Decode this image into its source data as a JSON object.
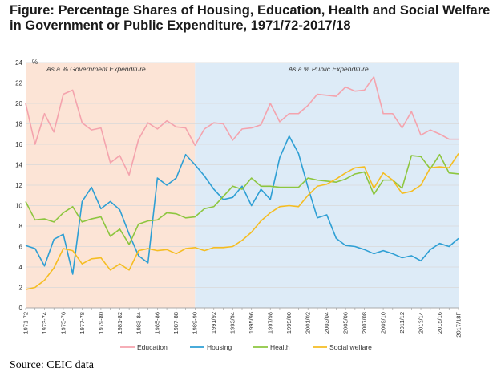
{
  "figure": {
    "title": "Figure: Percentage Shares of Housing, Education, Health and Social Welfare in Government or Public Expenditure, 1971/72-2017/18",
    "source": "Source: CEIC data"
  },
  "chart_data": {
    "type": "line",
    "ylabel": "%",
    "ylim": [
      0,
      24
    ],
    "yticks": [
      0,
      2,
      4,
      6,
      8,
      10,
      12,
      14,
      16,
      18,
      20,
      22,
      24
    ],
    "grid": true,
    "legend_position": "bottom",
    "regions": [
      {
        "label": "As a  %  Government Expenditure",
        "from": "1971-72",
        "to": "1989-90",
        "color": "#fce4d6"
      },
      {
        "label": "As a  %  Public Expenditure",
        "from": "1989-90",
        "to": "2017/18F",
        "color": "#ddebf7"
      }
    ],
    "x": [
      "1971-72",
      "1972-73",
      "1973-74",
      "1974-75",
      "1975-76",
      "1976-77",
      "1977-78",
      "1978-79",
      "1979-80",
      "1980-81",
      "1981-82",
      "1982-83",
      "1983-84",
      "1984-85",
      "1985-86",
      "1986-87",
      "1987-88",
      "1988-89",
      "1989-90",
      "1990/91",
      "1991/92",
      "1992/93",
      "1993/94",
      "1994/95",
      "1995/96",
      "1996/97",
      "1997/98",
      "1998/99",
      "1999/00",
      "2000/01",
      "2001/02",
      "2002/03",
      "2003/04",
      "2004/05",
      "2005/06",
      "2006/07",
      "2007/08",
      "2008/09",
      "2009/10",
      "2010/11",
      "2011/12",
      "2012/13",
      "2013/14",
      "2014/15",
      "2015/16",
      "2016/17",
      "2017/18F"
    ],
    "xtick_labels": [
      "1971-72",
      "1973-74",
      "1975-76",
      "1977-78",
      "1979-80",
      "1981-82",
      "1983-84",
      "1985-86",
      "1987-88",
      "1989-90",
      "1991/92",
      "1993/94",
      "1995/96",
      "1997/98",
      "1999/00",
      "2001/02",
      "2003/04",
      "2005/06",
      "2007/08",
      "2009/10",
      "2011/12",
      "2013/14",
      "2015/16",
      "2017/18F"
    ],
    "series": [
      {
        "name": "Education",
        "color": "#f4a3ad",
        "values": [
          20.0,
          16.0,
          19.0,
          17.2,
          20.9,
          21.3,
          18.1,
          17.4,
          17.6,
          14.2,
          14.9,
          13.0,
          16.5,
          18.1,
          17.5,
          18.3,
          17.7,
          17.6,
          15.9,
          17.5,
          18.1,
          18.0,
          16.4,
          17.5,
          17.6,
          17.9,
          20.0,
          18.2,
          19.0,
          19.0,
          19.8,
          20.9,
          20.8,
          20.7,
          21.6,
          21.2,
          21.3,
          22.6,
          19.0,
          19.0,
          17.6,
          19.2,
          16.9,
          17.4,
          17.0,
          16.5,
          16.5
        ]
      },
      {
        "name": "Housing",
        "color": "#2e9fd4",
        "values": [
          6.1,
          5.8,
          4.1,
          6.7,
          7.2,
          3.3,
          10.4,
          11.8,
          9.7,
          10.4,
          9.6,
          7.2,
          5.1,
          4.4,
          12.7,
          12.0,
          12.7,
          15.0,
          14.0,
          12.9,
          11.6,
          10.6,
          10.8,
          11.9,
          10.0,
          11.6,
          10.6,
          14.7,
          16.8,
          15.1,
          11.8,
          8.8,
          9.1,
          6.8,
          6.1,
          6.0,
          5.7,
          5.3,
          5.6,
          5.3,
          4.9,
          5.1,
          4.6,
          5.7,
          6.3,
          6.0,
          6.8
        ]
      },
      {
        "name": "Health",
        "color": "#8dc63f",
        "values": [
          10.4,
          8.6,
          8.7,
          8.4,
          9.3,
          9.9,
          8.4,
          8.7,
          8.9,
          7.0,
          7.7,
          6.2,
          8.2,
          8.5,
          8.6,
          9.3,
          9.2,
          8.8,
          8.9,
          9.7,
          9.9,
          10.9,
          11.9,
          11.6,
          12.7,
          11.9,
          11.9,
          11.8,
          11.8,
          11.8,
          12.7,
          12.5,
          12.4,
          12.3,
          12.6,
          13.1,
          13.3,
          11.1,
          12.5,
          12.5,
          11.7,
          14.9,
          14.8,
          13.6,
          15.0,
          13.2,
          13.1
        ]
      },
      {
        "name": "Social welfare",
        "color": "#f5bd22",
        "values": [
          1.8,
          2.0,
          2.7,
          3.9,
          5.8,
          5.6,
          4.3,
          4.8,
          4.9,
          3.7,
          4.3,
          3.7,
          5.6,
          5.8,
          5.6,
          5.7,
          5.3,
          5.8,
          5.9,
          5.6,
          5.9,
          5.9,
          6.0,
          6.6,
          7.4,
          8.5,
          9.3,
          9.9,
          10.0,
          9.9,
          11.0,
          11.9,
          12.1,
          12.6,
          13.2,
          13.7,
          13.8,
          11.7,
          13.2,
          12.5,
          11.2,
          11.4,
          12.0,
          13.7,
          13.8,
          13.7,
          15.1
        ]
      }
    ]
  }
}
